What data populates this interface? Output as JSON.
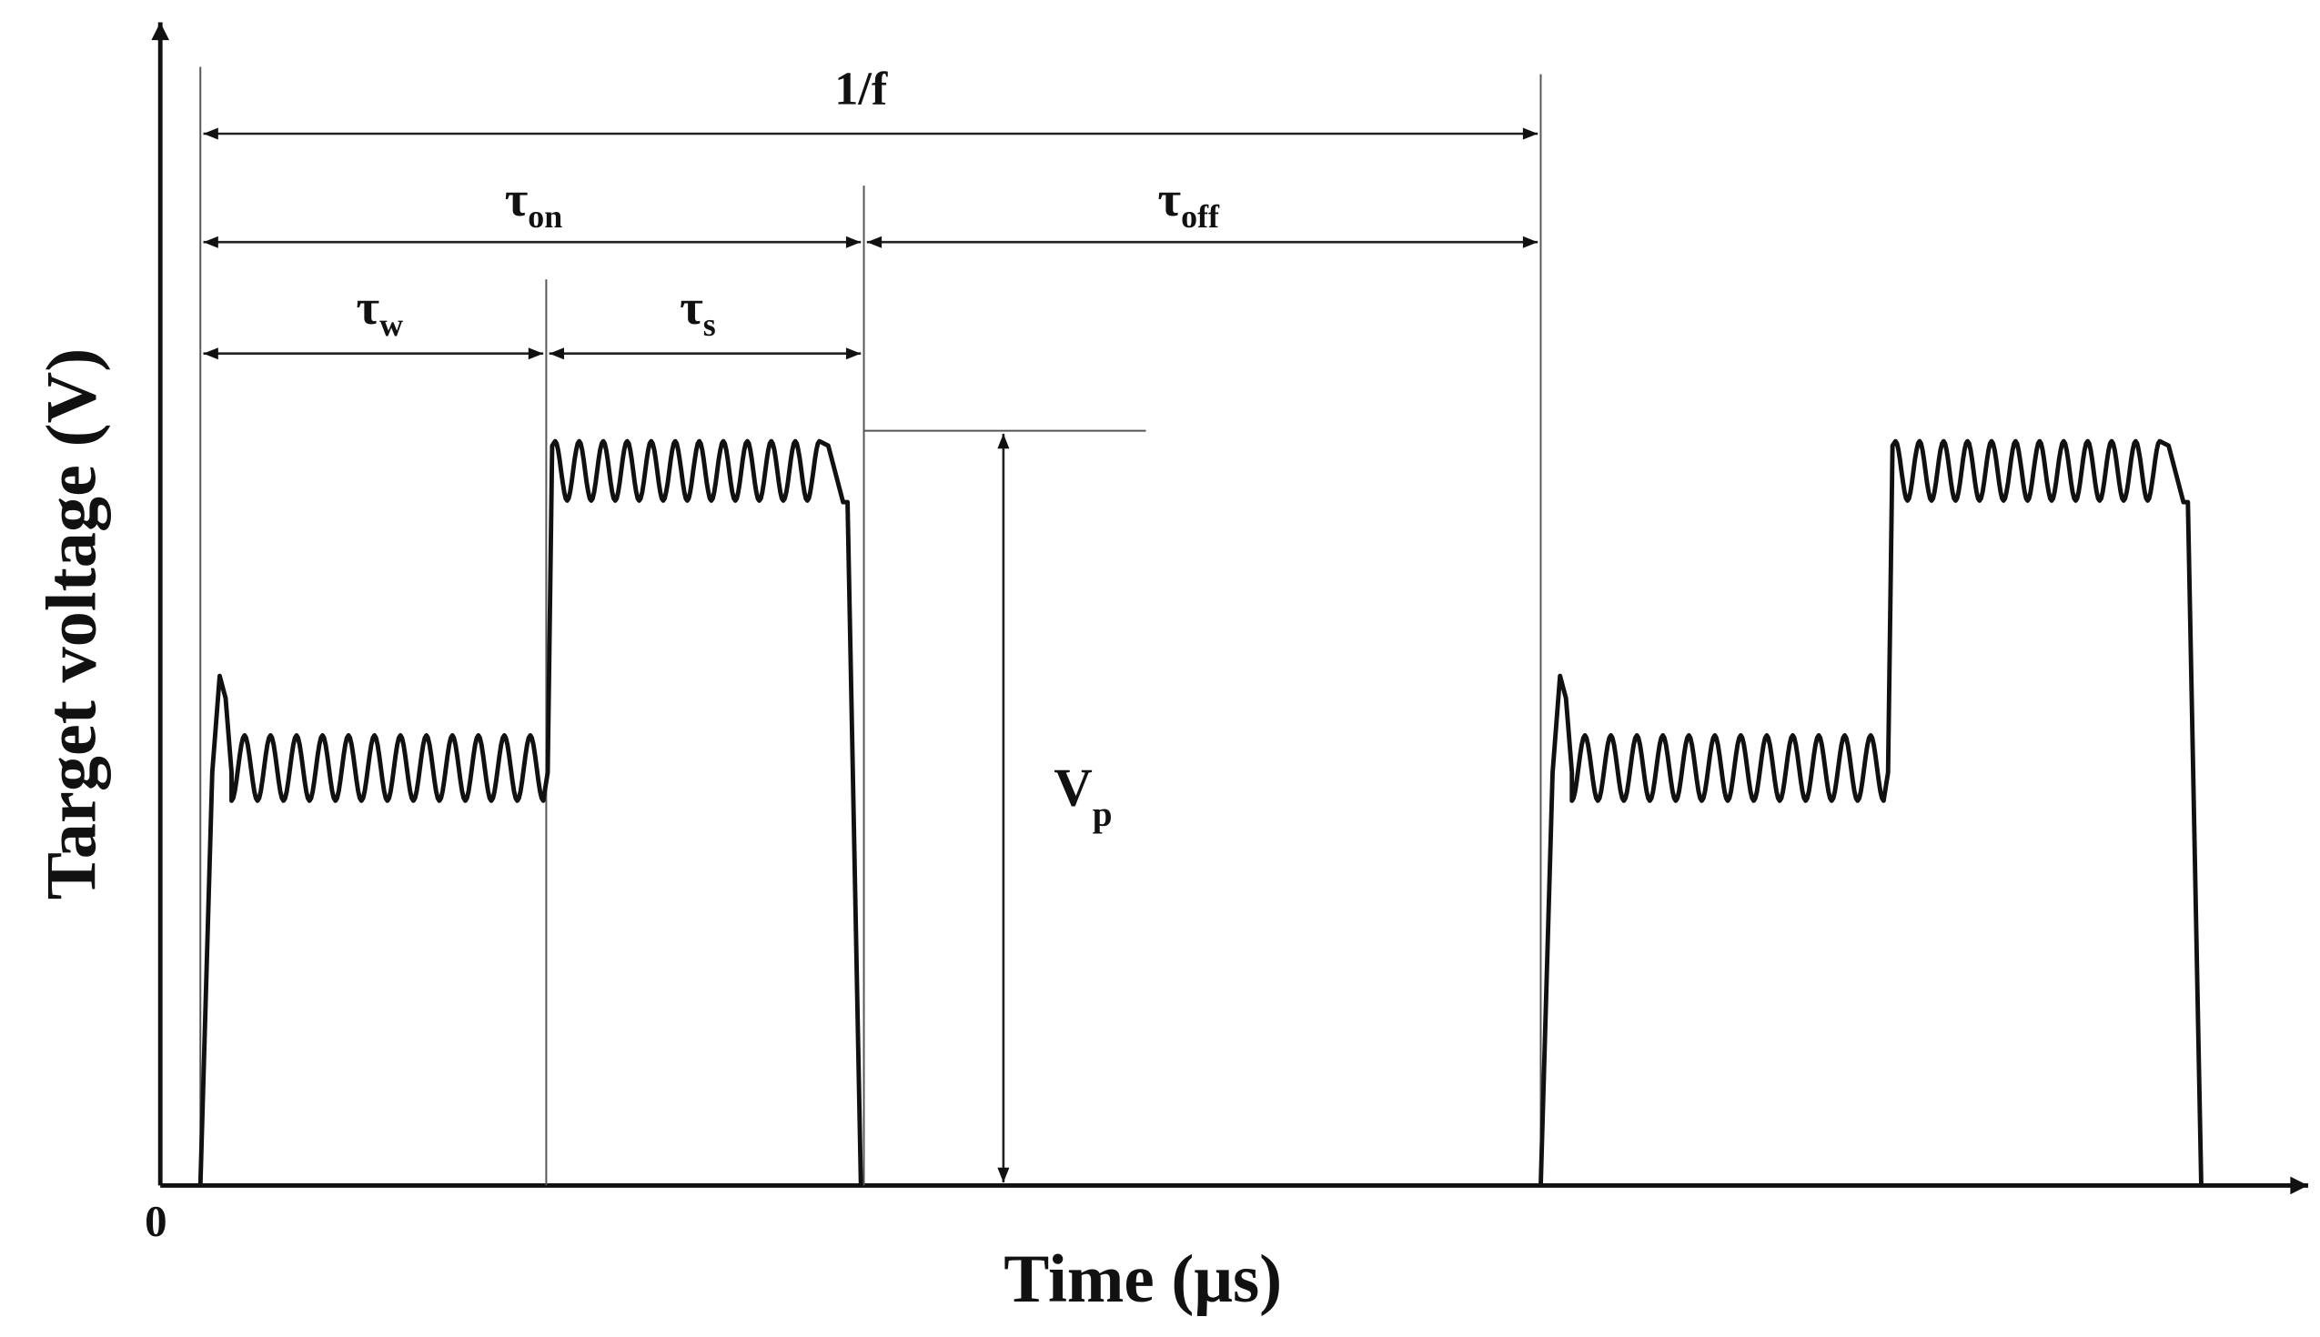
{
  "axes": {
    "x_label": "Time (μs)",
    "y_label": "Target voltage (V)",
    "origin": "0"
  },
  "dimensions": {
    "period": {
      "symbol": "1/f"
    },
    "on": {
      "symbol": "τ",
      "subscript": "on"
    },
    "off": {
      "symbol": "τ",
      "subscript": "off"
    },
    "w": {
      "symbol": "τ",
      "subscript": "w"
    },
    "s": {
      "symbol": "τ",
      "subscript": "s"
    },
    "peak": {
      "symbol": "V",
      "subscript": "p"
    }
  }
}
